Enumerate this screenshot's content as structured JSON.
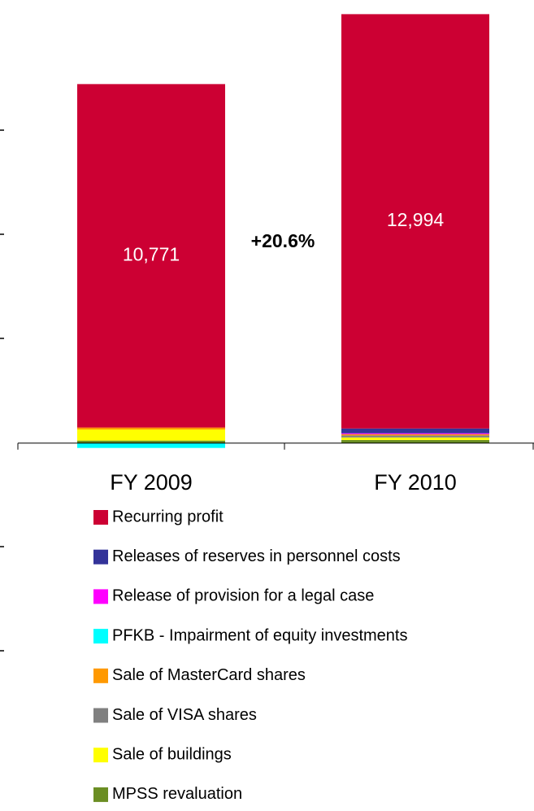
{
  "chart_data": {
    "type": "stacked_bar",
    "categories": [
      "FY 2009",
      "FY 2010"
    ],
    "series": [
      {
        "name": "Recurring profit",
        "color": "#cc0033",
        "values": [
          10771,
          12994
        ],
        "value_labels": [
          "10,771",
          "12,994"
        ]
      },
      {
        "name": "Releases of reserves in personnel costs",
        "color": "#333399",
        "values": [
          0,
          150
        ]
      },
      {
        "name": "Release of provision for a legal case",
        "color": "#ff00ff",
        "values": [
          0,
          30
        ]
      },
      {
        "name": "PFKB - Impairment of equity investments",
        "color": "#00ffff",
        "values": [
          -150,
          0
        ]
      },
      {
        "name": "Sale of MasterCard shares",
        "color": "#ff9900",
        "values": [
          60,
          40
        ]
      },
      {
        "name": "Sale of VISA shares",
        "color": "#808080",
        "values": [
          0,
          60
        ]
      },
      {
        "name": "Sale of buildings",
        "color": "#ffff00",
        "values": [
          350,
          80
        ]
      },
      {
        "name": "MPSS revaluation",
        "color": "#6b8e23",
        "values": [
          80,
          100
        ]
      }
    ],
    "annotations": [
      "+20.6%"
    ],
    "ylim": [
      -1000,
      14000
    ]
  }
}
